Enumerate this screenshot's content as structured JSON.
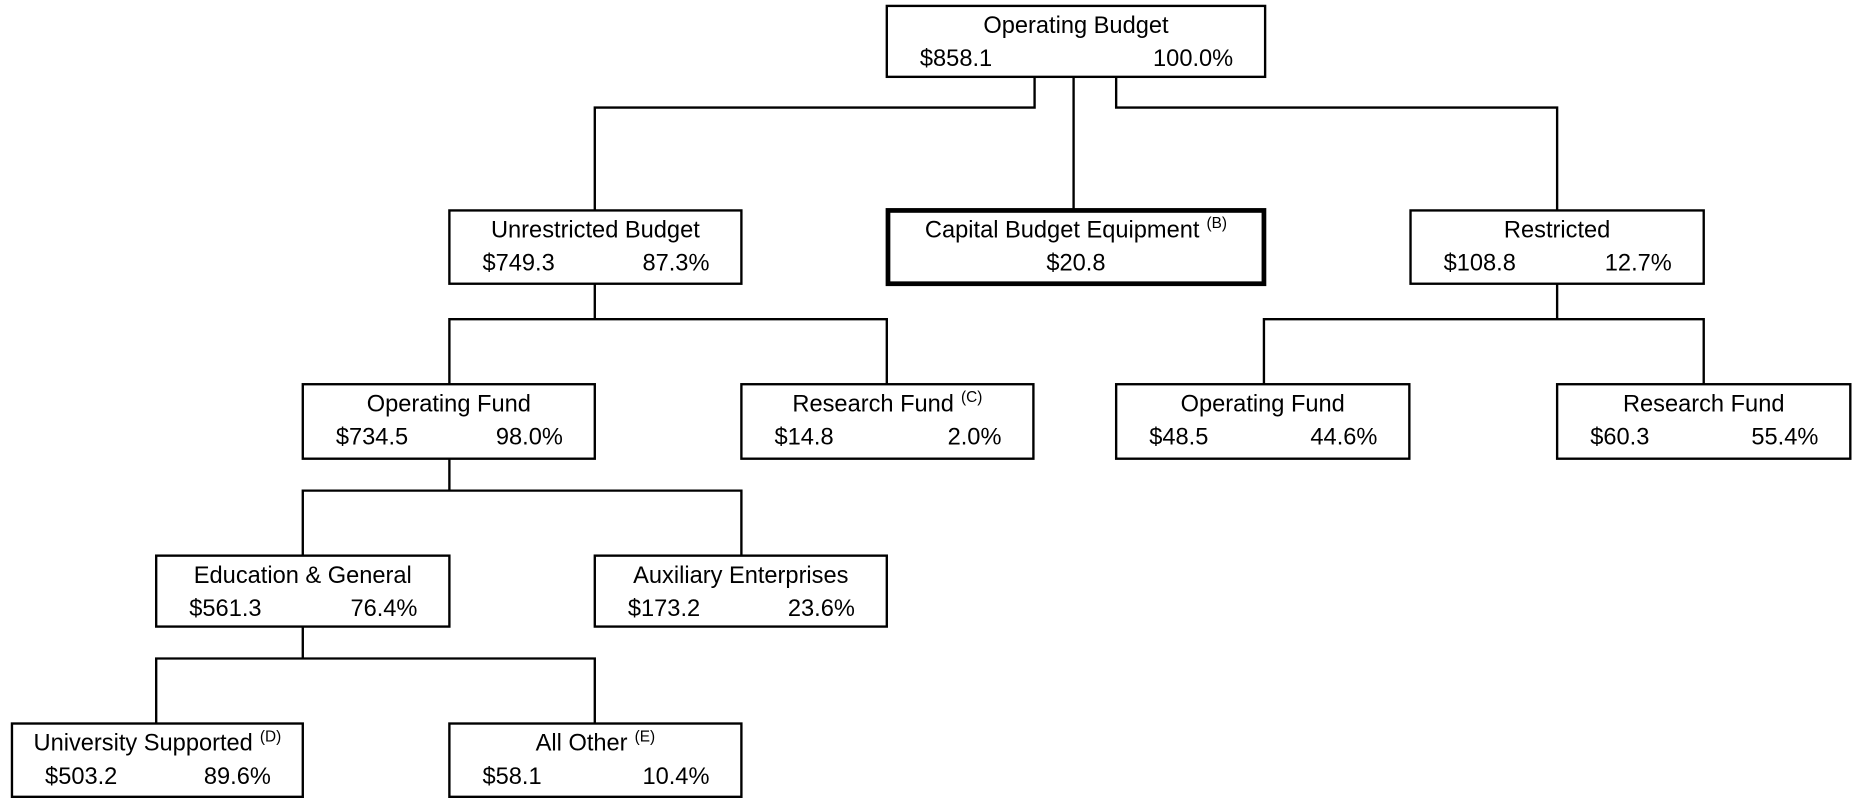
{
  "nodes": [
    {
      "title": "Operating Budget",
      "amount": "$858.1",
      "percent": "100.0%"
    },
    {
      "title": "Unrestricted Budget",
      "amount": "$749.3",
      "percent": "87.3%"
    },
    {
      "title": "Capital Budget Equipment",
      "note": "(B)",
      "amount": "$20.8"
    },
    {
      "title": "Restricted",
      "amount": "$108.8",
      "percent": "12.7%"
    },
    {
      "title": "Operating Fund",
      "amount": "$734.5",
      "percent": "98.0%"
    },
    {
      "title": "Research Fund",
      "note": "(C)",
      "amount": "$14.8",
      "percent": "2.0%"
    },
    {
      "title": "Operating Fund",
      "amount": "$48.5",
      "percent": "44.6%"
    },
    {
      "title": "Research Fund",
      "amount": "$60.3",
      "percent": "55.4%"
    },
    {
      "title": "Education & General",
      "amount": "$561.3",
      "percent": "76.4%"
    },
    {
      "title": "Auxiliary Enterprises",
      "amount": "$173.2",
      "percent": "23.6%"
    },
    {
      "title": "University Supported",
      "note": "(D)",
      "amount": "$503.2",
      "percent": "89.6%"
    },
    {
      "title": "All Other",
      "note": "(E)",
      "amount": "$58.1",
      "percent": "10.4%"
    }
  ]
}
